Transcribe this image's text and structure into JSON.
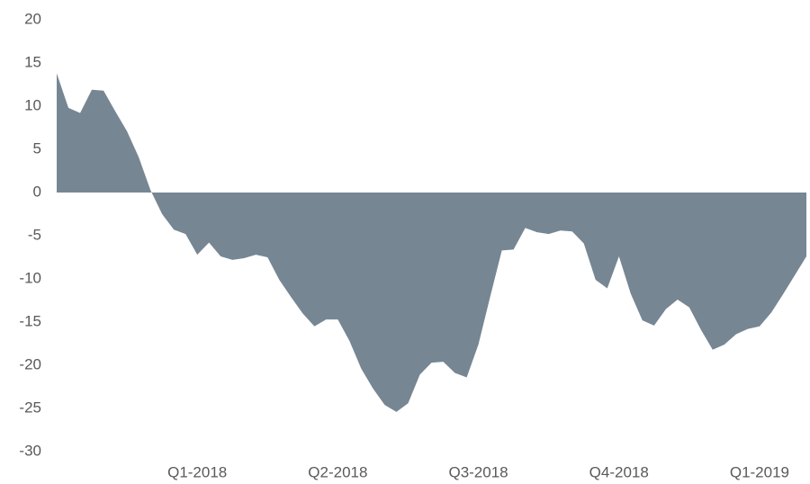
{
  "chart_data": {
    "type": "area",
    "categories": [
      null,
      null,
      null,
      null,
      null,
      null,
      null,
      null,
      null,
      null,
      null,
      null,
      "Q1-2018",
      null,
      null,
      null,
      null,
      null,
      null,
      null,
      null,
      null,
      null,
      null,
      "Q2-2018",
      null,
      null,
      null,
      null,
      null,
      null,
      null,
      null,
      null,
      null,
      null,
      "Q3-2018",
      null,
      null,
      null,
      null,
      null,
      null,
      null,
      null,
      null,
      null,
      null,
      "Q4-2018",
      null,
      null,
      null,
      null,
      null,
      null,
      null,
      null,
      null,
      null,
      null,
      "Q1-2019",
      null,
      null,
      null,
      null
    ],
    "values": [
      13.8,
      9.8,
      9.2,
      11.9,
      11.8,
      9.4,
      7.1,
      4.1,
      0.3,
      -2.5,
      -4.3,
      -4.8,
      -7.2,
      -5.8,
      -7.4,
      -7.8,
      -7.6,
      -7.2,
      -7.5,
      -10.1,
      -12.1,
      -14.0,
      -15.5,
      -14.7,
      -14.7,
      -17.2,
      -20.4,
      -22.7,
      -24.6,
      -25.4,
      -24.4,
      -21.1,
      -19.7,
      -19.6,
      -20.9,
      -21.4,
      -17.6,
      -12.1,
      -6.7,
      -6.6,
      -4.1,
      -4.6,
      -4.8,
      -4.4,
      -4.5,
      -5.9,
      -10.1,
      -11.1,
      -7.4,
      -11.7,
      -14.8,
      -15.4,
      -13.5,
      -12.4,
      -13.3,
      -15.9,
      -18.2,
      -17.6,
      -16.4,
      -15.8,
      -15.5,
      -13.9,
      -11.8,
      -9.6,
      -7.4
    ],
    "color": "#768693",
    "ylim": [
      -30,
      20
    ],
    "yticks": [
      20,
      15,
      10,
      5,
      0,
      -5,
      -10,
      -15,
      -20,
      -25,
      -30
    ],
    "grid": false
  }
}
